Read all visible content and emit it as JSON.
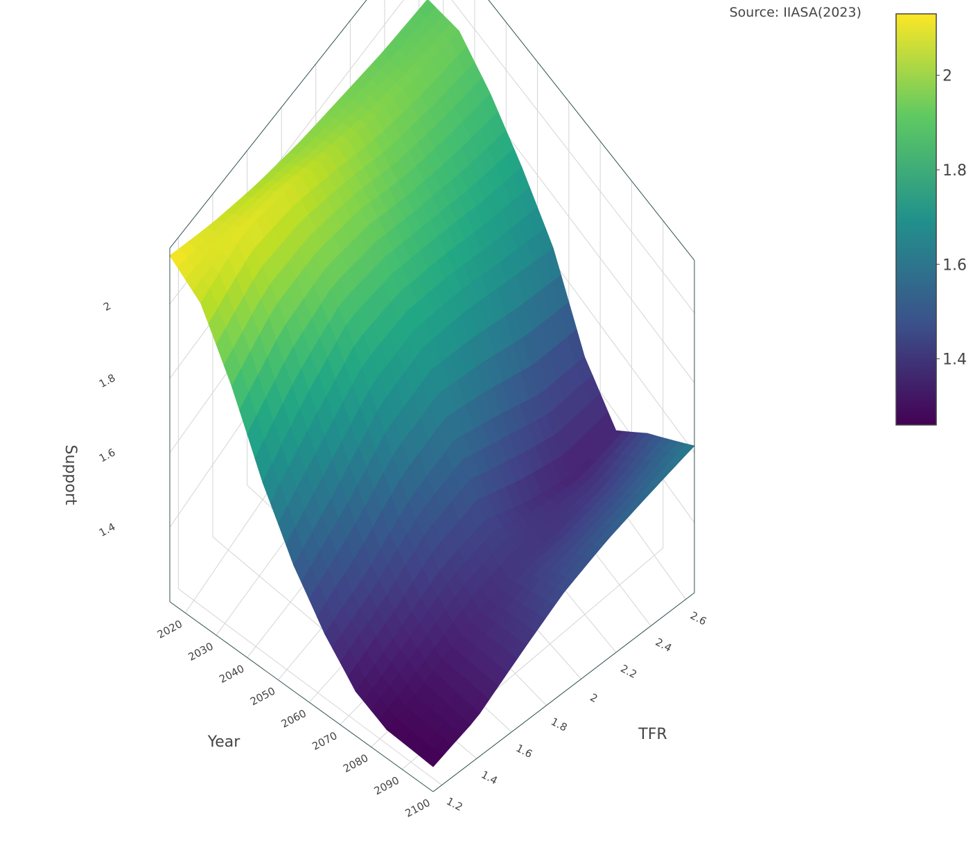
{
  "source_note": "Source: IIASA(2023)",
  "chart_data": {
    "type": "surface",
    "title": "",
    "x": {
      "label": "Year",
      "range": [
        2015,
        2100
      ],
      "ticks": [
        "2020",
        "2030",
        "2040",
        "2050",
        "2060",
        "2070",
        "2080",
        "2090",
        "2100"
      ]
    },
    "y": {
      "label": "TFR",
      "range": [
        1.15,
        2.65
      ],
      "ticks": [
        "1.2",
        "1.4",
        "1.6",
        "1.8",
        "2",
        "2.2",
        "2.4",
        "2.6"
      ]
    },
    "z": {
      "label": "Support",
      "range": [
        1.2,
        2.15
      ],
      "ticks": [
        "1.4",
        "1.6",
        "1.8",
        "2"
      ]
    },
    "grid": true,
    "colorscale": "Viridis",
    "colorbar": {
      "range": [
        1.26,
        2.13
      ],
      "ticks": [
        "1.4",
        "1.6",
        "1.8",
        "2"
      ],
      "placement": "right"
    },
    "surface_grid": {
      "years": [
        2015,
        2025,
        2035,
        2045,
        2055,
        2065,
        2075,
        2085,
        2100
      ],
      "tfr": [
        1.15,
        1.4,
        1.65,
        1.9,
        2.15,
        2.4,
        2.65
      ],
      "support": [
        [
          2.13,
          2.07,
          2.02,
          1.98,
          1.95,
          1.92,
          1.9
        ],
        [
          2.05,
          2.1,
          2.08,
          2.03,
          1.98,
          1.95,
          1.93
        ],
        [
          1.88,
          1.96,
          1.98,
          1.96,
          1.91,
          1.88,
          1.86
        ],
        [
          1.68,
          1.78,
          1.86,
          1.86,
          1.83,
          1.79,
          1.76
        ],
        [
          1.52,
          1.6,
          1.7,
          1.74,
          1.72,
          1.68,
          1.64
        ],
        [
          1.4,
          1.45,
          1.53,
          1.57,
          1.52,
          1.46,
          1.44
        ],
        [
          1.31,
          1.36,
          1.42,
          1.44,
          1.38,
          1.34,
          1.35
        ],
        [
          1.27,
          1.31,
          1.36,
          1.4,
          1.4,
          1.42,
          1.47
        ],
        [
          1.26,
          1.3,
          1.38,
          1.46,
          1.52,
          1.57,
          1.62
        ]
      ]
    }
  }
}
